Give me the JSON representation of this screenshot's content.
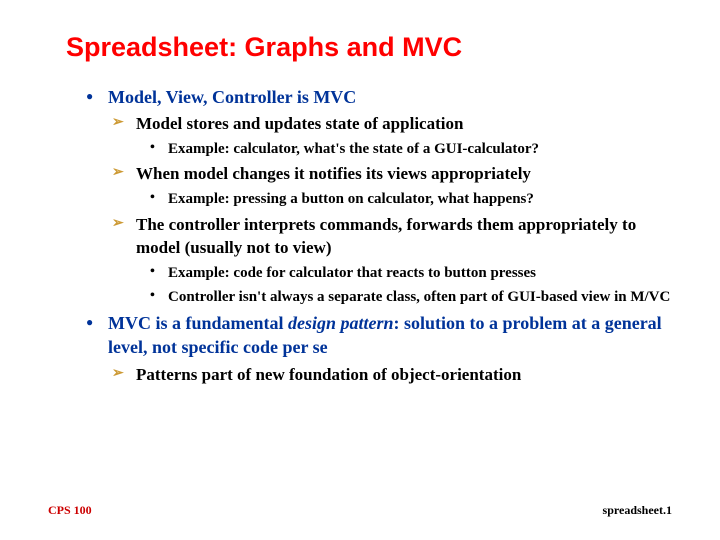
{
  "title": "Spreadsheet: Graphs and MVC",
  "title_color": "#ff0000",
  "title_font": "Arial",
  "title_fontsize": 27,
  "body_font": "Times New Roman",
  "level1_color": "#003399",
  "level2_bullet_color": "#cc9933",
  "background_color": "#ffffff",
  "bullets": {
    "l1_0": "Model, View, Controller is MVC",
    "l2_0_0": "Model stores and updates state of application",
    "l3_0_0_0": "Example: calculator, what's the state of a GUI-calculator?",
    "l2_0_1": "When model changes it notifies its views appropriately",
    "l3_0_1_0": "Example: pressing a button on calculator, what happens?",
    "l2_0_2": "The controller interprets commands, forwards them appropriately to model (usually not to view)",
    "l3_0_2_0": "Example: code for calculator that reacts to button presses",
    "l3_0_2_1": "Controller isn't always a separate class, often part of GUI-based view in M/VC",
    "l1_1_pre": "MVC is a fundamental ",
    "l1_1_italic": "design pattern",
    "l1_1_post": ": solution to a problem at a general level, not specific code per se",
    "l2_1_0": "Patterns part of new foundation of object-orientation"
  },
  "footer": {
    "left": "CPS 100",
    "right": "spreadsheet.1"
  }
}
